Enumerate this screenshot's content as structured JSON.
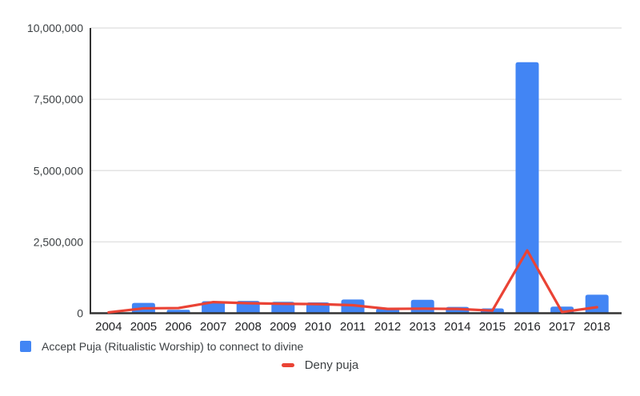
{
  "chart_data": {
    "type": "combo",
    "title": "",
    "xlabel": "",
    "ylabel": "",
    "categories": [
      "2004",
      "2005",
      "2006",
      "2007",
      "2008",
      "2009",
      "2010",
      "2011",
      "2012",
      "2013",
      "2014",
      "2015",
      "2016",
      "2017",
      "2018"
    ],
    "series": [
      {
        "name": "Accept Puja (Ritualistic Worship) to connect to divine",
        "type": "bar",
        "color": "#4285F4",
        "values": [
          20000,
          360000,
          120000,
          420000,
          430000,
          400000,
          380000,
          480000,
          160000,
          470000,
          220000,
          170000,
          8800000,
          230000,
          650000
        ]
      },
      {
        "name": "Deny puja",
        "type": "line",
        "color": "#EA4335",
        "values": [
          30000,
          170000,
          180000,
          390000,
          350000,
          330000,
          320000,
          280000,
          150000,
          160000,
          150000,
          90000,
          2200000,
          40000,
          210000
        ]
      }
    ],
    "ylim": [
      0,
      10000000
    ],
    "yticks": [
      0,
      2500000,
      5000000,
      7500000,
      10000000
    ],
    "ytick_labels": [
      "0",
      "2,500,000",
      "5,000,000",
      "7,500,000",
      "10,000,000"
    ],
    "grid": true,
    "legend_position": "bottom"
  },
  "colors": {
    "bar": "#4285F4",
    "line": "#EA4335",
    "gridline": "#e3e3e3",
    "axis": "#333333",
    "tick_text": "#3c4043"
  }
}
